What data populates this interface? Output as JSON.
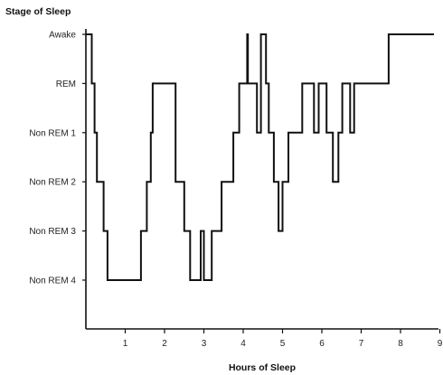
{
  "chart_data": {
    "type": "line",
    "step": true,
    "ylabel": "Stage of Sleep",
    "xlabel": "Hours of Sleep",
    "xlim": [
      0,
      9
    ],
    "x_ticks": [
      "1",
      "2",
      "3",
      "4",
      "5",
      "6",
      "7",
      "8",
      "9"
    ],
    "y_categories": [
      "Non REM 4",
      "Non REM 3",
      "Non REM 2",
      "Non REM 1",
      "REM",
      "Awake"
    ],
    "grid": false,
    "legend": "none",
    "line_color": "#111111",
    "points": [
      [
        0.0,
        6
      ],
      [
        0.15,
        6
      ],
      [
        0.15,
        5
      ],
      [
        0.22,
        5
      ],
      [
        0.22,
        4
      ],
      [
        0.28,
        4
      ],
      [
        0.28,
        3
      ],
      [
        0.45,
        3
      ],
      [
        0.45,
        2
      ],
      [
        0.55,
        2
      ],
      [
        0.55,
        1
      ],
      [
        1.4,
        1
      ],
      [
        1.4,
        2
      ],
      [
        1.55,
        2
      ],
      [
        1.55,
        3
      ],
      [
        1.65,
        3
      ],
      [
        1.65,
        4
      ],
      [
        1.7,
        4
      ],
      [
        1.7,
        5
      ],
      [
        2.28,
        5
      ],
      [
        2.28,
        3
      ],
      [
        2.5,
        3
      ],
      [
        2.5,
        2
      ],
      [
        2.65,
        2
      ],
      [
        2.65,
        1
      ],
      [
        2.92,
        1
      ],
      [
        2.92,
        2
      ],
      [
        3.0,
        2
      ],
      [
        3.0,
        1
      ],
      [
        3.2,
        1
      ],
      [
        3.2,
        2
      ],
      [
        3.45,
        2
      ],
      [
        3.45,
        3
      ],
      [
        3.75,
        3
      ],
      [
        3.75,
        4
      ],
      [
        3.9,
        4
      ],
      [
        3.9,
        5
      ],
      [
        4.1,
        5
      ],
      [
        4.1,
        6
      ],
      [
        4.12,
        6
      ],
      [
        4.12,
        5
      ],
      [
        4.35,
        5
      ],
      [
        4.35,
        4
      ],
      [
        4.45,
        4
      ],
      [
        4.45,
        6
      ],
      [
        4.58,
        6
      ],
      [
        4.58,
        5
      ],
      [
        4.65,
        5
      ],
      [
        4.65,
        4
      ],
      [
        4.78,
        4
      ],
      [
        4.78,
        3
      ],
      [
        4.9,
        3
      ],
      [
        4.9,
        2
      ],
      [
        5.0,
        2
      ],
      [
        5.0,
        3
      ],
      [
        5.15,
        3
      ],
      [
        5.15,
        4
      ],
      [
        5.5,
        4
      ],
      [
        5.5,
        5
      ],
      [
        5.8,
        5
      ],
      [
        5.8,
        4
      ],
      [
        5.92,
        4
      ],
      [
        5.92,
        5
      ],
      [
        6.12,
        5
      ],
      [
        6.12,
        4
      ],
      [
        6.28,
        4
      ],
      [
        6.28,
        3
      ],
      [
        6.42,
        3
      ],
      [
        6.42,
        4
      ],
      [
        6.52,
        4
      ],
      [
        6.52,
        5
      ],
      [
        6.72,
        5
      ],
      [
        6.72,
        4
      ],
      [
        6.82,
        4
      ],
      [
        6.82,
        5
      ],
      [
        7.7,
        5
      ],
      [
        7.7,
        6
      ],
      [
        8.85,
        6
      ]
    ]
  }
}
